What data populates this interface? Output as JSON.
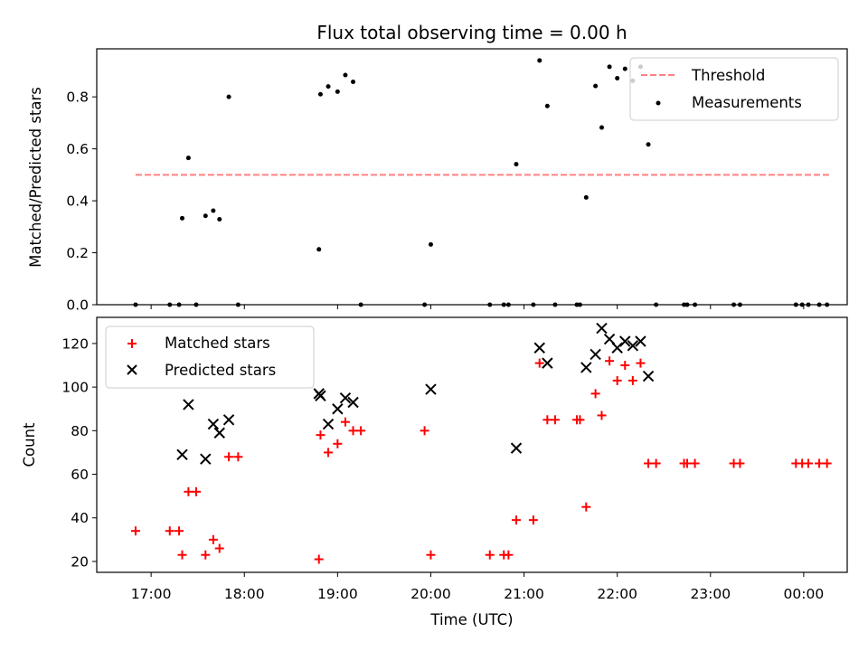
{
  "chart_data": [
    {
      "type": "scatter",
      "title": "Flux total observing time = 0.00 h",
      "xlabel": "",
      "ylabel": "Matched/Predicted stars",
      "ylim": [
        0,
        0.985
      ],
      "yticks": [
        0,
        0.2,
        0.4,
        0.6,
        0.8
      ],
      "ytick_labels": [
        "0.0",
        "0.2",
        "0.4",
        "0.6",
        "0.8"
      ],
      "grid": false,
      "legend_position": "top-right",
      "threshold": {
        "name": "Threshold",
        "value": 0.5,
        "x_start": "16:50",
        "x_end": "00:17",
        "color": "#ff8080"
      },
      "series": [
        {
          "name": "Measurements",
          "color": "#000000",
          "points": [
            [
              "16:50",
              0.0
            ],
            [
              "17:12",
              0.0
            ],
            [
              "17:18",
              0.0
            ],
            [
              "17:20",
              0.333
            ],
            [
              "17:24",
              0.565
            ],
            [
              "17:29",
              0.0
            ],
            [
              "17:35",
              0.342
            ],
            [
              "17:40",
              0.362
            ],
            [
              "17:44",
              0.329
            ],
            [
              "17:50",
              0.8
            ],
            [
              "17:56",
              0.0
            ],
            [
              "18:48",
              0.213
            ],
            [
              "18:49",
              0.81
            ],
            [
              "18:54",
              0.84
            ],
            [
              "19:00",
              0.82
            ],
            [
              "19:05",
              0.884
            ],
            [
              "19:10",
              0.858
            ],
            [
              "19:15",
              0.0
            ],
            [
              "19:56",
              0.0
            ],
            [
              "20:00",
              0.232
            ],
            [
              "20:38",
              0.0
            ],
            [
              "20:47",
              0.0
            ],
            [
              "20:50",
              0.0
            ],
            [
              "20:55",
              0.541
            ],
            [
              "21:06",
              0.0
            ],
            [
              "21:10",
              0.94
            ],
            [
              "21:15",
              0.765
            ],
            [
              "21:20",
              0.0
            ],
            [
              "21:34",
              0.0
            ],
            [
              "21:36",
              0.0
            ],
            [
              "21:40",
              0.413
            ],
            [
              "21:46",
              0.842
            ],
            [
              "21:50",
              0.682
            ],
            [
              "21:55",
              0.916
            ],
            [
              "22:00",
              0.872
            ],
            [
              "22:05",
              0.908
            ],
            [
              "22:10",
              0.862
            ],
            [
              "22:15",
              0.916
            ],
            [
              "22:20",
              0.617
            ],
            [
              "22:25",
              0.0
            ],
            [
              "22:43",
              0.0
            ],
            [
              "22:45",
              0.0
            ],
            [
              "22:50",
              0.0
            ],
            [
              "23:15",
              0.0
            ],
            [
              "23:19",
              0.0
            ],
            [
              "23:55",
              0.0
            ],
            [
              "23:59",
              0.0
            ],
            [
              "00:03",
              0.0
            ],
            [
              "00:10",
              0.0
            ],
            [
              "00:15",
              0.0
            ]
          ]
        }
      ]
    },
    {
      "type": "scatter",
      "title": "",
      "xlabel": "Time (UTC)",
      "ylabel": "Count",
      "ylim": [
        15,
        132
      ],
      "yticks": [
        20,
        40,
        60,
        80,
        100,
        120
      ],
      "ytick_labels": [
        "20",
        "40",
        "60",
        "80",
        "100",
        "120"
      ],
      "xlim": [
        "16:25",
        "00:28"
      ],
      "xticks": [
        "17:00",
        "18:00",
        "19:00",
        "20:00",
        "21:00",
        "22:00",
        "23:00",
        "00:00"
      ],
      "grid": false,
      "legend_position": "top-left",
      "series": [
        {
          "name": "Matched stars",
          "color": "#ff0000",
          "marker": "plus",
          "points": [
            [
              "16:50",
              34
            ],
            [
              "17:12",
              34
            ],
            [
              "17:18",
              34
            ],
            [
              "17:20",
              23
            ],
            [
              "17:24",
              52
            ],
            [
              "17:29",
              52
            ],
            [
              "17:35",
              23
            ],
            [
              "17:40",
              30
            ],
            [
              "17:44",
              26
            ],
            [
              "17:50",
              68
            ],
            [
              "17:56",
              68
            ],
            [
              "18:48",
              21
            ],
            [
              "18:49",
              78
            ],
            [
              "18:54",
              70
            ],
            [
              "19:00",
              74
            ],
            [
              "19:05",
              84
            ],
            [
              "19:10",
              80
            ],
            [
              "19:15",
              80
            ],
            [
              "19:56",
              80
            ],
            [
              "20:00",
              23
            ],
            [
              "20:38",
              23
            ],
            [
              "20:47",
              23
            ],
            [
              "20:50",
              23
            ],
            [
              "20:55",
              39
            ],
            [
              "21:06",
              39
            ],
            [
              "21:10",
              111
            ],
            [
              "21:15",
              85
            ],
            [
              "21:20",
              85
            ],
            [
              "21:34",
              85
            ],
            [
              "21:36",
              85
            ],
            [
              "21:40",
              45
            ],
            [
              "21:46",
              97
            ],
            [
              "21:50",
              87
            ],
            [
              "21:55",
              112
            ],
            [
              "22:00",
              103
            ],
            [
              "22:05",
              110
            ],
            [
              "22:10",
              103
            ],
            [
              "22:15",
              111
            ],
            [
              "22:20",
              65
            ],
            [
              "22:25",
              65
            ],
            [
              "22:43",
              65
            ],
            [
              "22:45",
              65
            ],
            [
              "22:50",
              65
            ],
            [
              "23:15",
              65
            ],
            [
              "23:19",
              65
            ],
            [
              "23:55",
              65
            ],
            [
              "23:59",
              65
            ],
            [
              "00:03",
              65
            ],
            [
              "00:10",
              65
            ],
            [
              "00:15",
              65
            ]
          ]
        },
        {
          "name": "Predicted stars",
          "color": "#000000",
          "marker": "x",
          "points": [
            [
              "17:20",
              69
            ],
            [
              "17:24",
              92
            ],
            [
              "17:35",
              67
            ],
            [
              "17:40",
              83
            ],
            [
              "17:44",
              79
            ],
            [
              "17:50",
              85
            ],
            [
              "18:48",
              97
            ],
            [
              "18:49",
              96
            ],
            [
              "18:54",
              83
            ],
            [
              "19:00",
              90
            ],
            [
              "19:05",
              95
            ],
            [
              "19:10",
              93
            ],
            [
              "20:00",
              99
            ],
            [
              "20:55",
              72
            ],
            [
              "21:10",
              118
            ],
            [
              "21:15",
              111
            ],
            [
              "21:40",
              109
            ],
            [
              "21:46",
              115
            ],
            [
              "21:50",
              127
            ],
            [
              "21:55",
              122
            ],
            [
              "22:00",
              118
            ],
            [
              "22:05",
              121
            ],
            [
              "22:10",
              119
            ],
            [
              "22:15",
              121
            ],
            [
              "22:20",
              105
            ]
          ]
        }
      ]
    }
  ]
}
